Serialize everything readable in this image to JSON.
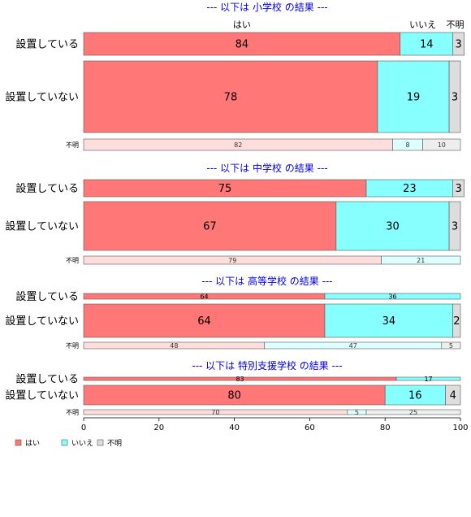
{
  "chart_data": {
    "type": "bar",
    "orientation": "horizontal",
    "stacked": true,
    "xlim": [
      0,
      100
    ],
    "xticks": [
      0,
      20,
      40,
      60,
      80,
      100
    ],
    "column_headers": [
      "はい",
      "いいえ",
      "不明"
    ],
    "legend": {
      "placement": "bottom-left",
      "entries": [
        {
          "name": "はい",
          "color": "#ff7777"
        },
        {
          "name": "いいえ",
          "color": "#88ffff"
        },
        {
          "name": "不明",
          "color": "#dddddd"
        }
      ]
    },
    "colors": {
      "yes": "#ff7777",
      "no": "#88ffff",
      "unknown": "#dddddd",
      "yes_light": "#ffdddd",
      "no_light": "#ddffff",
      "unknown_light": "#eeeeee"
    },
    "panels": [
      {
        "title": "--- 以下は 小学校 の結果 ---",
        "rows": [
          {
            "label": "設置している",
            "values": [
              84,
              14,
              3
            ]
          },
          {
            "label": "設置していない",
            "values": [
              78,
              19,
              3
            ]
          },
          {
            "label": "不明",
            "values": [
              82,
              8,
              10
            ]
          }
        ]
      },
      {
        "title": "--- 以下は 中学校 の結果 ---",
        "rows": [
          {
            "label": "設置している",
            "values": [
              75,
              23,
              3
            ]
          },
          {
            "label": "設置していない",
            "values": [
              67,
              30,
              3
            ]
          },
          {
            "label": "不明",
            "values": [
              79,
              21,
              0
            ]
          }
        ]
      },
      {
        "title": "--- 以下は 高等学校 の結果 ---",
        "rows": [
          {
            "label": "設置している",
            "values": [
              64,
              36,
              0
            ]
          },
          {
            "label": "設置していない",
            "values": [
              64,
              34,
              2
            ]
          },
          {
            "label": "不明",
            "values": [
              48,
              47,
              5
            ]
          }
        ]
      },
      {
        "title": "--- 以下は 特別支援学校 の結果 ---",
        "rows": [
          {
            "label": "設置している",
            "values": [
              83,
              17,
              0
            ]
          },
          {
            "label": "設置していない",
            "values": [
              80,
              16,
              4
            ]
          },
          {
            "label": "不明",
            "values": [
              70,
              5,
              25
            ]
          }
        ]
      }
    ]
  }
}
